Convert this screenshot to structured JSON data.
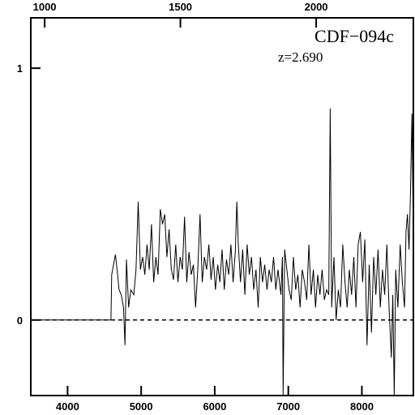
{
  "chart_data": {
    "type": "line",
    "title": "CDF−094c",
    "subtitle": "z=2.690",
    "xlim": [
      3500,
      8700
    ],
    "xticks": [
      4000,
      5000,
      6000,
      7000,
      8000
    ],
    "x2lim": [
      949,
      2358
    ],
    "x2ticks": [
      1000,
      1500,
      2000
    ],
    "ylim": [
      -0.3,
      1.2
    ],
    "yticks": [
      0,
      1
    ],
    "reference_line": 0,
    "color": "#000000",
    "x": [
      3500,
      4590,
      4600,
      4650,
      4680,
      4700,
      4730,
      4760,
      4780,
      4800,
      4830,
      4860,
      4900,
      4930,
      4960,
      4990,
      5020,
      5050,
      5080,
      5110,
      5140,
      5170,
      5200,
      5230,
      5260,
      5290,
      5320,
      5350,
      5380,
      5410,
      5440,
      5470,
      5500,
      5530,
      5560,
      5590,
      5620,
      5650,
      5680,
      5710,
      5740,
      5770,
      5800,
      5830,
      5860,
      5890,
      5920,
      5950,
      5980,
      6010,
      6040,
      6070,
      6100,
      6130,
      6160,
      6190,
      6220,
      6250,
      6280,
      6300,
      6320,
      6350,
      6380,
      6410,
      6440,
      6470,
      6500,
      6530,
      6560,
      6590,
      6620,
      6650,
      6680,
      6710,
      6740,
      6770,
      6800,
      6830,
      6860,
      6900,
      6920,
      6930,
      6950,
      6980,
      7010,
      7040,
      7070,
      7100,
      7130,
      7160,
      7190,
      7220,
      7250,
      7280,
      7310,
      7340,
      7370,
      7400,
      7430,
      7460,
      7490,
      7520,
      7550,
      7570,
      7590,
      7620,
      7650,
      7680,
      7710,
      7740,
      7770,
      7800,
      7830,
      7860,
      7890,
      7920,
      7950,
      7980,
      8010,
      8040,
      8070,
      8100,
      8130,
      8160,
      8190,
      8220,
      8250,
      8280,
      8310,
      8340,
      8370,
      8400,
      8420,
      8440,
      8460,
      8490,
      8520,
      8550,
      8580,
      8600,
      8620,
      8640,
      8660,
      8680,
      8700
    ],
    "values": [
      0,
      0,
      0.18,
      0.26,
      0.18,
      0.12,
      0.1,
      0.05,
      -0.1,
      0.24,
      0.05,
      0.12,
      0.1,
      0.2,
      0.47,
      0.2,
      0.25,
      0.18,
      0.3,
      0.2,
      0.38,
      0.15,
      0.25,
      0.18,
      0.44,
      0.38,
      0.42,
      0.25,
      0.36,
      0.2,
      0.16,
      0.3,
      0.15,
      0.25,
      0.2,
      0.41,
      0.15,
      0.27,
      0.18,
      0.22,
      0.05,
      0.2,
      0.42,
      0.15,
      0.25,
      0.2,
      0.3,
      0.16,
      0.25,
      0.12,
      0.22,
      0.15,
      0.28,
      0.12,
      0.24,
      0.18,
      0.3,
      0.15,
      0.27,
      0.47,
      0.3,
      0.15,
      0.28,
      0.1,
      0.3,
      0.18,
      0.25,
      0.12,
      0.2,
      0.05,
      0.25,
      0.15,
      0.22,
      0.12,
      0.2,
      0.15,
      0.25,
      0.12,
      0.2,
      0.1,
      0.25,
      -0.3,
      0.28,
      0.2,
      0.12,
      0.08,
      0.25,
      0.12,
      0.18,
      0.05,
      0.2,
      0.15,
      0.08,
      0.3,
      0.1,
      0.2,
      0.05,
      0.18,
      0.1,
      0.2,
      0.08,
      0.12,
      0.1,
      0.84,
      0.05,
      0.25,
      0,
      0.12,
      0.05,
      0.3,
      0.15,
      0.05,
      0.2,
      0.1,
      0.25,
      0.05,
      0.3,
      0.35,
      0.15,
      0.32,
      -0.1,
      0.22,
      -0.05,
      0.25,
      0.1,
      0.28,
      0.05,
      0.2,
      0.1,
      0.3,
      0.05,
      -0.15,
      0.1,
      -0.3,
      0.2,
      0.05,
      0.3,
      0.15,
      0.05,
      0.35,
      0.42,
      0.28,
      0.5,
      0.82,
      0.3
    ]
  }
}
